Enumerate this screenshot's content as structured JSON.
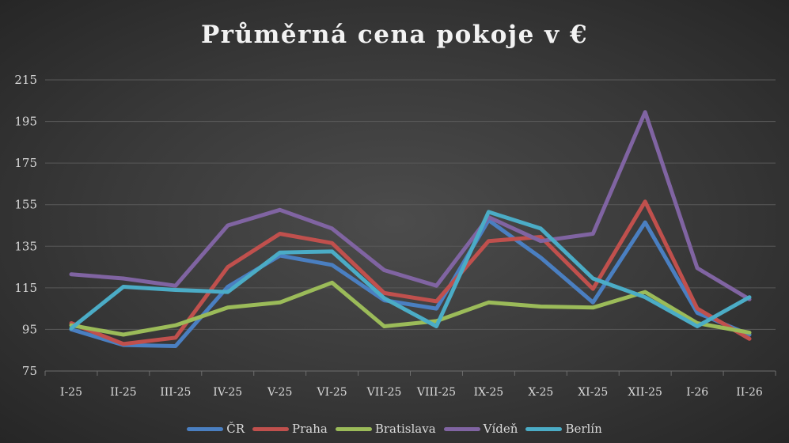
{
  "chart_data": {
    "type": "line",
    "title": "Průměrná cena pokoje v €",
    "xlabel": "",
    "ylabel": "",
    "ylim": [
      75,
      215
    ],
    "yticks": [
      75,
      95,
      115,
      135,
      155,
      175,
      195,
      215
    ],
    "grid": true,
    "legend_position": "bottom",
    "categories": [
      "I-25",
      "II-25",
      "III-25",
      "IV-25",
      "V-25",
      "VI-25",
      "VII-25",
      "VIII-25",
      "IX-25",
      "X-25",
      "XI-25",
      "XII-25",
      "I-26",
      "II-26"
    ],
    "series": [
      {
        "name": "ČR",
        "color": "#4a7fc1",
        "values": [
          95,
          87.5,
          87,
          115.5,
          130.5,
          126,
          109,
          105,
          147.5,
          129.5,
          108,
          146.5,
          103,
          92.5
        ]
      },
      {
        "name": "Praha",
        "color": "#c0504d",
        "values": [
          98,
          88,
          91,
          125,
          141,
          136.5,
          112.5,
          108.5,
          137.5,
          139.5,
          114.5,
          156.5,
          105,
          90.5
        ]
      },
      {
        "name": "Bratislava",
        "color": "#9bbb59",
        "values": [
          97,
          92.5,
          97,
          105.5,
          108,
          117.5,
          96.5,
          99,
          108,
          106,
          105.5,
          113,
          98,
          93.5
        ]
      },
      {
        "name": "Vídeň",
        "color": "#8064a2",
        "values": [
          121.5,
          119.5,
          116,
          145,
          152.5,
          143.5,
          123.5,
          116,
          149,
          137.5,
          141,
          199.5,
          124.5,
          109.5
        ]
      },
      {
        "name": "Berlín",
        "color": "#4bacc6",
        "values": [
          95.5,
          115.5,
          114,
          113,
          132,
          132.5,
          110,
          96.5,
          151.5,
          143.5,
          119.5,
          110.5,
          96.5,
          110.5
        ]
      }
    ]
  }
}
